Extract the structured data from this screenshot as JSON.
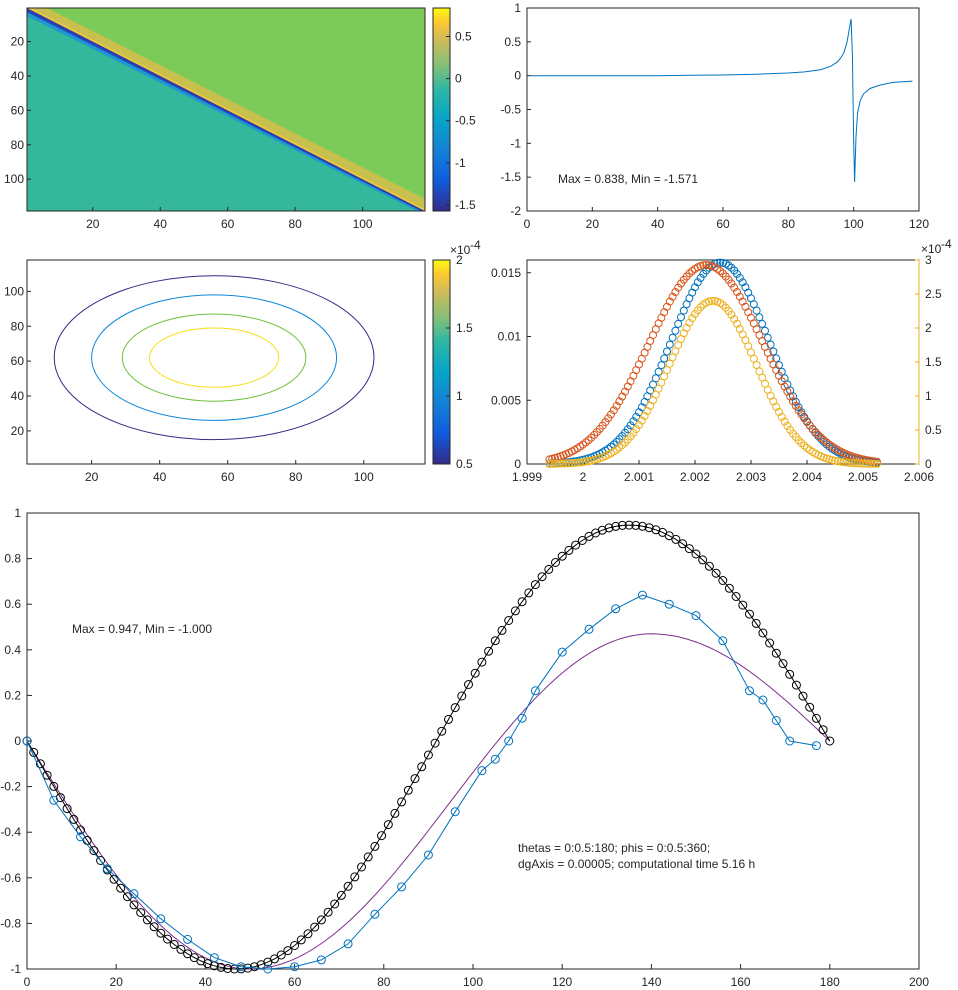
{
  "chart_data": [
    {
      "type": "heatmap",
      "panel": "top-left",
      "description_of_values": "strictly lower-triangular field; values near 0.75 just below the diagonal, negative (to about -1.57) just above it, ~0 elsewhere",
      "xlim": [
        0.5,
        118.5
      ],
      "ylim": [
        0.5,
        118.5
      ],
      "y_reversed": true,
      "xticks": [
        20,
        40,
        60,
        80,
        100
      ],
      "yticks": [
        20,
        40,
        60,
        80,
        100
      ],
      "colorbar": {
        "ticks": [
          0.5,
          0,
          -0.5,
          -1,
          -1.5
        ],
        "range": [
          -1.571,
          0.838
        ],
        "colormap": "parula"
      }
    },
    {
      "type": "line",
      "panel": "top-right",
      "series": [
        {
          "x": [
            1,
            10,
            20,
            30,
            40,
            50,
            60,
            70,
            80,
            85,
            90,
            93,
            95,
            96,
            97,
            98,
            98.7,
            99.2,
            99.6,
            100,
            100.3,
            100.7,
            101.2,
            102,
            103,
            105,
            108,
            112,
            118
          ],
          "y": [
            0,
            0,
            0,
            0,
            0,
            0.005,
            0.01,
            0.02,
            0.04,
            0.055,
            0.09,
            0.14,
            0.2,
            0.26,
            0.34,
            0.5,
            0.7,
            0.838,
            0.3,
            -1.0,
            -1.571,
            -0.9,
            -0.55,
            -0.37,
            -0.27,
            -0.19,
            -0.14,
            -0.1,
            -0.08
          ],
          "color": "#0072BD"
        }
      ],
      "xlim": [
        0,
        120
      ],
      "ylim": [
        -2,
        1
      ],
      "xticks": [
        0,
        20,
        40,
        60,
        80,
        100,
        120
      ],
      "yticks": [
        1,
        0.5,
        0,
        -0.5,
        -1,
        -1.5,
        -2
      ],
      "annotation": "Max = 0.838, Min = -1.571"
    },
    {
      "type": "contour",
      "panel": "middle-left",
      "center": [
        56,
        62
      ],
      "levels": [
        {
          "value": 0.5,
          "rx": 47,
          "ry": 47,
          "color": "#352A87"
        },
        {
          "value": 1.0,
          "rx": 36,
          "ry": 36,
          "color": "#0F87D9"
        },
        {
          "value": 1.5,
          "rx": 27,
          "ry": 25,
          "color": "#6DBF37"
        },
        {
          "value": 2.0,
          "rx": 19,
          "ry": 17,
          "color": "#F5DD19"
        }
      ],
      "xlim": [
        1,
        118
      ],
      "ylim": [
        1,
        118
      ],
      "xticks": [
        20,
        40,
        60,
        80,
        100
      ],
      "yticks": [
        20,
        40,
        60,
        80,
        100
      ],
      "colorbar": {
        "ticks": [
          "2",
          "1.5",
          "1",
          "0.5"
        ],
        "range": [
          0.5,
          2
        ],
        "exponent": "×10^{-4}",
        "colormap": "parula"
      }
    },
    {
      "type": "scatter",
      "panel": "middle-right",
      "series": [
        {
          "marker": "o",
          "color": "#0072BD",
          "center": 2.00245,
          "sigma": 0.00088,
          "amp": 0.0158,
          "x_range": [
            1.9994,
            2.00525
          ],
          "axis": "left"
        },
        {
          "marker": "o",
          "color": "#D95319",
          "center": 2.0022,
          "sigma": 0.00102,
          "amp": 0.0156,
          "x_range": [
            1.9994,
            2.00525
          ],
          "axis": "left"
        },
        {
          "marker": "o",
          "color": "#EDB120",
          "center": 2.00232,
          "sigma": 0.00078,
          "amp": 0.00024,
          "x_range": [
            1.9994,
            2.00525
          ],
          "axis": "right"
        }
      ],
      "xlim": [
        1.999,
        2.006
      ],
      "ylim_left": [
        0,
        0.016
      ],
      "ylim_right": [
        0,
        0.0003
      ],
      "xticks": [
        "1.999",
        "2",
        "2.001",
        "2.002",
        "2.003",
        "2.004",
        "2.005",
        "2.006"
      ],
      "yticks_left": [
        "0.015",
        "0.01",
        "0.005",
        "0"
      ],
      "yticks_right": [
        "3",
        "2.5",
        "2",
        "1.5",
        "1",
        "0.5",
        "0"
      ],
      "right_exponent": "×10^{-4}"
    },
    {
      "type": "line",
      "panel": "bottom",
      "series": [
        {
          "id": "black",
          "style": "line-with-circles",
          "color": "#000000",
          "x": [
            0,
            180
          ],
          "step": 1.5,
          "formula": "sin-like; minimum -1.000 at x≈47, maximum 0.947 at x≈135, 0 at x=180"
        },
        {
          "id": "purple",
          "style": "line",
          "color": "#7E2F8E",
          "x": [
            0,
            180
          ]
        },
        {
          "id": "blue",
          "style": "line-with-circles",
          "color": "#0072BD",
          "x": [
            0,
            6,
            12,
            18,
            24,
            30,
            36,
            42,
            48,
            54,
            60,
            66,
            72,
            78,
            84,
            90,
            96,
            102,
            105,
            108,
            111,
            114,
            120,
            126,
            132,
            138,
            144,
            150,
            156,
            162,
            165,
            168,
            171,
            177
          ],
          "y": [
            0,
            -0.26,
            -0.42,
            -0.56,
            -0.67,
            -0.78,
            -0.87,
            -0.95,
            -0.99,
            -1.0,
            -0.99,
            -0.96,
            -0.89,
            -0.76,
            -0.64,
            -0.5,
            -0.31,
            -0.13,
            -0.08,
            0.0,
            0.1,
            0.22,
            0.39,
            0.49,
            0.58,
            0.64,
            0.6,
            0.55,
            0.44,
            0.22,
            0.18,
            0.09,
            0.0,
            -0.02
          ]
        }
      ],
      "xlim": [
        0,
        200
      ],
      "ylim": [
        -1,
        1
      ],
      "xticks": [
        0,
        20,
        40,
        60,
        80,
        100,
        120,
        140,
        160,
        180,
        200
      ],
      "yticks": [
        "1",
        "0.8",
        "0.6",
        "0.4",
        "0.2",
        "0",
        "-0.2",
        "-0.4",
        "-0.6",
        "-0.8",
        "-1"
      ],
      "annotations": [
        "Max = 0.947, Min = -1.000",
        "thetas = 0:0.5:180; phis = 0:0.5:360;",
        "dgAxis = 0.00005; computational time 5.16 h"
      ]
    }
  ]
}
